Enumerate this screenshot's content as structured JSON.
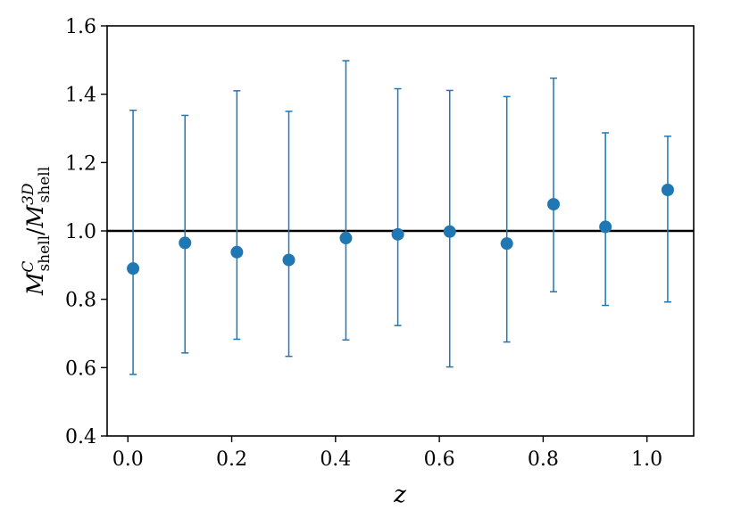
{
  "chart_data": {
    "type": "scatter",
    "title": "",
    "xlabel": "z",
    "ylabel": {
      "base1": "M",
      "sup1": "C",
      "sub1": "shell",
      "slash": "/",
      "base2": "M",
      "sup2": "3D",
      "sub2": "shell"
    },
    "xlim": [
      -0.04,
      1.09
    ],
    "ylim": [
      0.4,
      1.6
    ],
    "xticks": [
      0.0,
      0.2,
      0.4,
      0.6,
      0.8,
      1.0
    ],
    "xtick_labels": [
      "0.0",
      "0.2",
      "0.4",
      "0.6",
      "0.8",
      "1.0"
    ],
    "yticks": [
      0.4,
      0.6,
      0.8,
      1.0,
      1.2,
      1.4,
      1.6
    ],
    "ytick_labels": [
      "0.4",
      "0.6",
      "0.8",
      "1.0",
      "1.2",
      "1.4",
      "1.6"
    ],
    "reference_line": {
      "y": 1.0,
      "color": "#000000"
    },
    "series": [
      {
        "color": "#1f77b4",
        "x": [
          0.01,
          0.11,
          0.21,
          0.31,
          0.42,
          0.52,
          0.62,
          0.73,
          0.82,
          0.92,
          1.04
        ],
        "y": [
          0.89,
          0.965,
          0.938,
          0.915,
          0.979,
          0.99,
          0.998,
          0.963,
          1.078,
          1.012,
          1.12
        ],
        "err_low": [
          0.58,
          0.643,
          0.683,
          0.633,
          0.681,
          0.723,
          0.602,
          0.675,
          0.822,
          0.782,
          0.792
        ],
        "err_high": [
          1.353,
          1.338,
          1.41,
          1.35,
          1.498,
          1.416,
          1.411,
          1.393,
          1.447,
          1.287,
          1.277
        ]
      }
    ],
    "grid": false,
    "legend": null
  }
}
